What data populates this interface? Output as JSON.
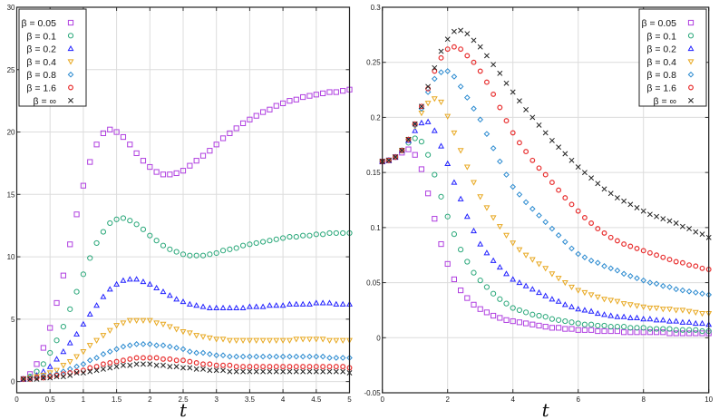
{
  "chart_data": [
    {
      "type": "scatter",
      "xlabel": "t",
      "ylabel": "",
      "xlim": [
        0,
        5
      ],
      "ylim": [
        -0.9,
        30
      ],
      "xticks": [
        "0",
        "0.5",
        "1",
        "1.5",
        "2",
        "2.5",
        "3",
        "3.5",
        "4",
        "4.5",
        "5"
      ],
      "yticks": [
        "0",
        "5",
        "10",
        "15",
        "20",
        "25",
        "30"
      ],
      "grid": true,
      "legend_position": "top-left",
      "x": [
        0.1,
        0.2,
        0.3,
        0.4,
        0.5,
        0.6,
        0.7,
        0.8,
        0.9,
        1.0,
        1.1,
        1.2,
        1.3,
        1.4,
        1.5,
        1.6,
        1.7,
        1.8,
        1.9,
        2.0,
        2.1,
        2.2,
        2.3,
        2.4,
        2.5,
        2.6,
        2.7,
        2.8,
        2.9,
        3.0,
        3.1,
        3.2,
        3.3,
        3.4,
        3.5,
        3.6,
        3.7,
        3.8,
        3.9,
        4.0,
        4.1,
        4.2,
        4.3,
        4.4,
        4.5,
        4.6,
        4.7,
        4.8,
        4.9,
        5.0
      ],
      "series": [
        {
          "name": "β = 0.05",
          "marker": "square",
          "color": "#b040e0",
          "values": [
            0.2,
            0.6,
            1.4,
            2.7,
            4.3,
            6.3,
            8.5,
            11.0,
            13.4,
            15.7,
            17.6,
            19.0,
            19.9,
            20.2,
            20.0,
            19.6,
            19.0,
            18.3,
            17.7,
            17.2,
            16.8,
            16.6,
            16.6,
            16.7,
            16.9,
            17.3,
            17.7,
            18.1,
            18.5,
            19.0,
            19.5,
            19.9,
            20.3,
            20.7,
            21.0,
            21.3,
            21.6,
            21.8,
            22.1,
            22.3,
            22.5,
            22.6,
            22.8,
            22.9,
            23.0,
            23.1,
            23.2,
            23.2,
            23.3,
            23.4
          ]
        },
        {
          "name": "β = 0.1",
          "marker": "circle",
          "color": "#2aa87a",
          "values": [
            0.2,
            0.4,
            0.8,
            1.4,
            2.3,
            3.3,
            4.4,
            5.8,
            7.2,
            8.6,
            9.9,
            11.1,
            12.0,
            12.7,
            13.0,
            13.1,
            12.9,
            12.6,
            12.2,
            11.7,
            11.3,
            10.9,
            10.6,
            10.4,
            10.2,
            10.1,
            10.1,
            10.1,
            10.2,
            10.3,
            10.5,
            10.6,
            10.7,
            10.9,
            11.0,
            11.1,
            11.2,
            11.3,
            11.4,
            11.5,
            11.6,
            11.6,
            11.7,
            11.7,
            11.8,
            11.8,
            11.9,
            11.9,
            11.9,
            11.9
          ]
        },
        {
          "name": "β = 0.2",
          "marker": "triangle-up",
          "color": "#2222ff",
          "values": [
            0.2,
            0.3,
            0.5,
            0.8,
            1.2,
            1.8,
            2.4,
            3.1,
            3.8,
            4.6,
            5.4,
            6.1,
            6.8,
            7.4,
            7.8,
            8.1,
            8.2,
            8.2,
            8.0,
            7.8,
            7.5,
            7.2,
            6.9,
            6.6,
            6.4,
            6.2,
            6.1,
            6.0,
            5.9,
            5.9,
            5.9,
            5.9,
            5.9,
            5.9,
            6.0,
            6.0,
            6.0,
            6.1,
            6.1,
            6.1,
            6.2,
            6.2,
            6.2,
            6.2,
            6.3,
            6.3,
            6.3,
            6.2,
            6.2,
            6.2
          ]
        },
        {
          "name": "β = 0.4",
          "marker": "triangle-down",
          "color": "#e8a820",
          "values": [
            0.2,
            0.3,
            0.4,
            0.5,
            0.7,
            0.9,
            1.3,
            1.6,
            2.0,
            2.4,
            2.9,
            3.3,
            3.7,
            4.1,
            4.5,
            4.7,
            4.9,
            4.9,
            4.9,
            4.9,
            4.7,
            4.6,
            4.4,
            4.2,
            4.0,
            3.9,
            3.7,
            3.6,
            3.5,
            3.4,
            3.4,
            3.3,
            3.3,
            3.3,
            3.3,
            3.3,
            3.3,
            3.3,
            3.3,
            3.3,
            3.3,
            3.4,
            3.4,
            3.4,
            3.4,
            3.4,
            3.3,
            3.3,
            3.3,
            3.3
          ]
        },
        {
          "name": "β = 0.8",
          "marker": "diamond",
          "color": "#2a8ad0",
          "values": [
            0.2,
            0.3,
            0.3,
            0.4,
            0.5,
            0.6,
            0.8,
            1.0,
            1.2,
            1.4,
            1.7,
            1.9,
            2.2,
            2.4,
            2.6,
            2.8,
            2.9,
            3.0,
            3.0,
            3.0,
            2.9,
            2.9,
            2.8,
            2.7,
            2.6,
            2.4,
            2.3,
            2.3,
            2.2,
            2.1,
            2.1,
            2.0,
            2.0,
            2.0,
            2.0,
            2.0,
            2.0,
            2.0,
            2.0,
            2.0,
            2.0,
            2.0,
            2.0,
            2.0,
            2.0,
            2.0,
            1.9,
            1.9,
            1.9,
            1.9
          ]
        },
        {
          "name": "β = 1.6",
          "marker": "hexagon",
          "color": "#e83030",
          "values": [
            0.2,
            0.2,
            0.3,
            0.3,
            0.4,
            0.5,
            0.6,
            0.7,
            0.8,
            0.9,
            1.1,
            1.2,
            1.4,
            1.5,
            1.6,
            1.7,
            1.8,
            1.9,
            1.9,
            1.9,
            1.9,
            1.8,
            1.8,
            1.7,
            1.7,
            1.6,
            1.5,
            1.4,
            1.4,
            1.3,
            1.3,
            1.3,
            1.2,
            1.2,
            1.2,
            1.2,
            1.2,
            1.2,
            1.2,
            1.2,
            1.2,
            1.2,
            1.2,
            1.2,
            1.2,
            1.2,
            1.2,
            1.2,
            1.2,
            1.1
          ]
        },
        {
          "name": "β = ∞",
          "marker": "cross",
          "color": "#222222",
          "values": [
            0.2,
            0.2,
            0.2,
            0.3,
            0.3,
            0.4,
            0.4,
            0.5,
            0.7,
            0.7,
            0.8,
            0.9,
            1.0,
            1.1,
            1.2,
            1.3,
            1.3,
            1.4,
            1.4,
            1.4,
            1.3,
            1.3,
            1.2,
            1.2,
            1.1,
            1.1,
            1.0,
            1.0,
            0.9,
            0.9,
            0.9,
            0.8,
            0.8,
            0.8,
            0.8,
            0.8,
            0.8,
            0.8,
            0.8,
            0.8,
            0.8,
            0.8,
            0.8,
            0.8,
            0.8,
            0.8,
            0.8,
            0.8,
            0.8,
            0.7
          ]
        }
      ]
    },
    {
      "type": "scatter",
      "xlabel": "t",
      "ylabel": "",
      "xlim": [
        0,
        10
      ],
      "ylim": [
        -0.05,
        0.3
      ],
      "xticks": [
        "0",
        "2",
        "4",
        "6",
        "8",
        "10"
      ],
      "yticks": [
        "-0.05",
        "0",
        "0.05",
        "0.1",
        "0.15",
        "0.2",
        "0.25",
        "0.3"
      ],
      "grid": true,
      "legend_position": "top-right",
      "x": [
        0,
        0.2,
        0.4,
        0.6,
        0.8,
        1.0,
        1.2,
        1.4,
        1.6,
        1.8,
        2.0,
        2.2,
        2.4,
        2.6,
        2.8,
        3.0,
        3.2,
        3.4,
        3.6,
        3.8,
        4.0,
        4.2,
        4.4,
        4.6,
        4.8,
        5.0,
        5.2,
        5.4,
        5.6,
        5.8,
        6.0,
        6.2,
        6.4,
        6.6,
        6.8,
        7.0,
        7.2,
        7.4,
        7.6,
        7.8,
        8.0,
        8.2,
        8.4,
        8.6,
        8.8,
        9.0,
        9.2,
        9.4,
        9.6,
        9.8,
        10.0
      ],
      "series": [
        {
          "name": "β = 0.05",
          "marker": "square",
          "color": "#b040e0",
          "values": [
            0.16,
            0.161,
            0.164,
            0.168,
            0.171,
            0.166,
            0.153,
            0.131,
            0.108,
            0.085,
            0.067,
            0.053,
            0.043,
            0.036,
            0.03,
            0.026,
            0.023,
            0.02,
            0.018,
            0.016,
            0.015,
            0.014,
            0.013,
            0.012,
            0.011,
            0.01,
            0.009,
            0.009,
            0.008,
            0.008,
            0.007,
            0.007,
            0.007,
            0.006,
            0.006,
            0.006,
            0.006,
            0.005,
            0.005,
            0.005,
            0.005,
            0.005,
            0.005,
            0.005,
            0.004,
            0.004,
            0.004,
            0.004,
            0.004,
            0.004,
            0.004
          ]
        },
        {
          "name": "β = 0.1",
          "marker": "circle",
          "color": "#2aa87a",
          "values": [
            0.16,
            0.161,
            0.164,
            0.17,
            0.177,
            0.181,
            0.178,
            0.166,
            0.148,
            0.128,
            0.11,
            0.094,
            0.08,
            0.069,
            0.059,
            0.052,
            0.046,
            0.04,
            0.035,
            0.031,
            0.027,
            0.025,
            0.023,
            0.021,
            0.02,
            0.019,
            0.017,
            0.016,
            0.015,
            0.014,
            0.013,
            0.012,
            0.012,
            0.011,
            0.011,
            0.01,
            0.01,
            0.01,
            0.009,
            0.009,
            0.009,
            0.008,
            0.008,
            0.008,
            0.008,
            0.007,
            0.007,
            0.007,
            0.007,
            0.006,
            0.006
          ]
        },
        {
          "name": "β = 0.2",
          "marker": "triangle-up",
          "color": "#2222ff",
          "values": [
            0.16,
            0.161,
            0.164,
            0.17,
            0.179,
            0.188,
            0.195,
            0.196,
            0.188,
            0.174,
            0.158,
            0.141,
            0.126,
            0.11,
            0.097,
            0.085,
            0.077,
            0.07,
            0.064,
            0.058,
            0.053,
            0.05,
            0.047,
            0.044,
            0.041,
            0.038,
            0.035,
            0.033,
            0.03,
            0.028,
            0.026,
            0.025,
            0.024,
            0.022,
            0.021,
            0.02,
            0.019,
            0.019,
            0.018,
            0.018,
            0.017,
            0.017,
            0.016,
            0.016,
            0.015,
            0.015,
            0.014,
            0.014,
            0.013,
            0.013,
            0.012
          ]
        },
        {
          "name": "β = 0.4",
          "marker": "triangle-down",
          "color": "#e8a820",
          "values": [
            0.16,
            0.161,
            0.164,
            0.17,
            0.18,
            0.192,
            0.204,
            0.213,
            0.217,
            0.214,
            0.201,
            0.186,
            0.17,
            0.155,
            0.141,
            0.128,
            0.118,
            0.109,
            0.101,
            0.093,
            0.086,
            0.08,
            0.075,
            0.071,
            0.067,
            0.063,
            0.058,
            0.054,
            0.05,
            0.046,
            0.043,
            0.041,
            0.039,
            0.037,
            0.035,
            0.034,
            0.033,
            0.031,
            0.03,
            0.029,
            0.028,
            0.027,
            0.027,
            0.026,
            0.026,
            0.025,
            0.025,
            0.024,
            0.023,
            0.022,
            0.022
          ]
        },
        {
          "name": "β = 0.8",
          "marker": "diamond",
          "color": "#2a8ad0",
          "values": [
            0.16,
            0.161,
            0.164,
            0.17,
            0.18,
            0.193,
            0.208,
            0.223,
            0.235,
            0.241,
            0.242,
            0.237,
            0.228,
            0.218,
            0.208,
            0.198,
            0.185,
            0.172,
            0.16,
            0.148,
            0.137,
            0.13,
            0.123,
            0.117,
            0.111,
            0.105,
            0.099,
            0.093,
            0.087,
            0.081,
            0.076,
            0.073,
            0.07,
            0.068,
            0.065,
            0.063,
            0.061,
            0.058,
            0.056,
            0.054,
            0.052,
            0.05,
            0.049,
            0.047,
            0.046,
            0.044,
            0.043,
            0.042,
            0.041,
            0.04,
            0.039
          ]
        },
        {
          "name": "β = 1.6",
          "marker": "hexagon",
          "color": "#e83030",
          "values": [
            0.16,
            0.161,
            0.164,
            0.17,
            0.18,
            0.194,
            0.21,
            0.226,
            0.242,
            0.254,
            0.262,
            0.264,
            0.262,
            0.256,
            0.25,
            0.242,
            0.232,
            0.221,
            0.209,
            0.197,
            0.186,
            0.177,
            0.169,
            0.161,
            0.154,
            0.148,
            0.141,
            0.134,
            0.127,
            0.121,
            0.115,
            0.109,
            0.104,
            0.099,
            0.095,
            0.091,
            0.088,
            0.085,
            0.083,
            0.081,
            0.079,
            0.077,
            0.075,
            0.073,
            0.071,
            0.069,
            0.068,
            0.066,
            0.065,
            0.063,
            0.062
          ]
        },
        {
          "name": "β = ∞",
          "marker": "cross",
          "color": "#222222",
          "values": [
            0.16,
            0.161,
            0.164,
            0.17,
            0.18,
            0.194,
            0.21,
            0.228,
            0.245,
            0.26,
            0.271,
            0.278,
            0.279,
            0.276,
            0.27,
            0.264,
            0.256,
            0.248,
            0.24,
            0.231,
            0.223,
            0.215,
            0.207,
            0.2,
            0.193,
            0.186,
            0.179,
            0.173,
            0.167,
            0.161,
            0.155,
            0.15,
            0.145,
            0.14,
            0.135,
            0.131,
            0.127,
            0.124,
            0.121,
            0.118,
            0.115,
            0.112,
            0.11,
            0.108,
            0.106,
            0.104,
            0.101,
            0.099,
            0.096,
            0.094,
            0.091
          ]
        }
      ]
    }
  ]
}
